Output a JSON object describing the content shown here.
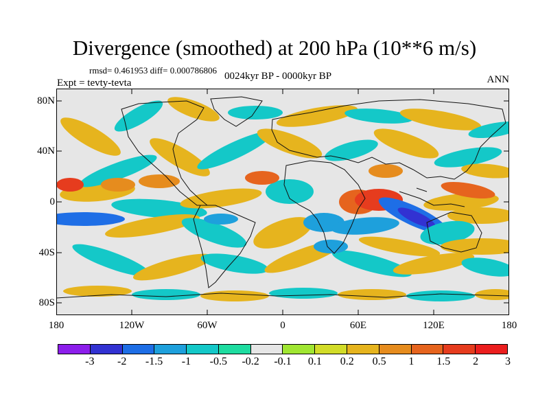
{
  "title": "Divergence (smoothed) at 200 hPa (10**6 m/s)",
  "stats": "rmsd= 0.461953 diff= 0.000786806",
  "subtitle": "0024kyr BP - 0000kyr BP",
  "experiment": "Expt = tevty-tevta",
  "season": "ANN",
  "lat_labels": [
    "80N",
    "40N",
    "0",
    "40S",
    "80S"
  ],
  "lon_labels": [
    "180",
    "120W",
    "60W",
    "0",
    "60E",
    "120E",
    "180"
  ],
  "colorbar": {
    "colors": [
      "#8c1eeb",
      "#3232d2",
      "#1e6ee6",
      "#1ea0dc",
      "#14c8c8",
      "#1edca0",
      "#e6e6e6",
      "#a0e632",
      "#d2dc28",
      "#e6b41e",
      "#e68c1e",
      "#e6641e",
      "#e63c1e",
      "#eb1e1e"
    ],
    "labels": [
      "-3",
      "-2",
      "-1.5",
      "-1",
      "-0.5",
      "-0.2",
      "-0.1",
      "0.1",
      "0.2",
      "0.5",
      "1",
      "1.5",
      "2",
      "3"
    ]
  }
}
